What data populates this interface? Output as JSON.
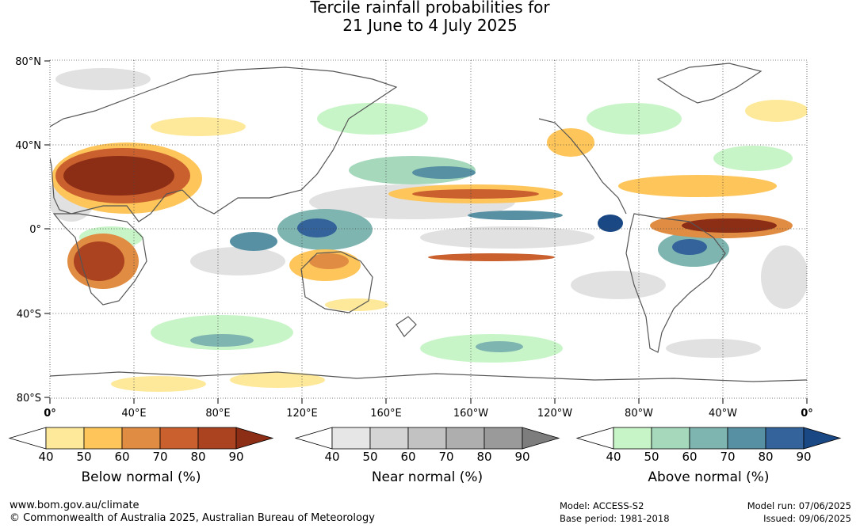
{
  "title": {
    "line1": "Tercile rainfall probabilities for",
    "line2": "21 June to 4 July 2025"
  },
  "map": {
    "lat_labels": [
      "80°N",
      "40°N",
      "0°",
      "40°S",
      "80°S"
    ],
    "lon_labels": [
      "0°",
      "40°E",
      "80°E",
      "120°E",
      "160°E",
      "160°W",
      "120°W",
      "80°W",
      "40°W",
      "0°"
    ]
  },
  "legends": [
    {
      "name": "Below normal (%)",
      "ticks": [
        "40",
        "50",
        "60",
        "70",
        "80",
        "90"
      ],
      "colors": [
        "#ffffff",
        "#fee99b",
        "#fec55a",
        "#e08c42",
        "#c9602e",
        "#ab4320",
        "#8c2d16"
      ]
    },
    {
      "name": "Near normal (%)",
      "ticks": [
        "40",
        "50",
        "60",
        "70",
        "80",
        "90"
      ],
      "colors": [
        "#ffffff",
        "#e6e6e6",
        "#d4d4d4",
        "#c2c2c2",
        "#aeaeae",
        "#9a9a9a",
        "#7d7d7d"
      ]
    },
    {
      "name": "Above normal (%)",
      "ticks": [
        "40",
        "50",
        "60",
        "70",
        "80",
        "90"
      ],
      "colors": [
        "#ffffff",
        "#c8f5c8",
        "#a6d8bc",
        "#7fb5b0",
        "#5890a3",
        "#33639a",
        "#1a4885"
      ]
    }
  ],
  "footer": {
    "website": "www.bom.gov.au/climate",
    "copyright": "© Commonwealth of Australia 2025, Australian Bureau of Meteorology",
    "model": "Model: ACCESS-S2",
    "base_period": "Base period: 1981-2018",
    "model_run": "Model run: 07/06/2025",
    "issued": "Issued: 09/06/2025"
  }
}
